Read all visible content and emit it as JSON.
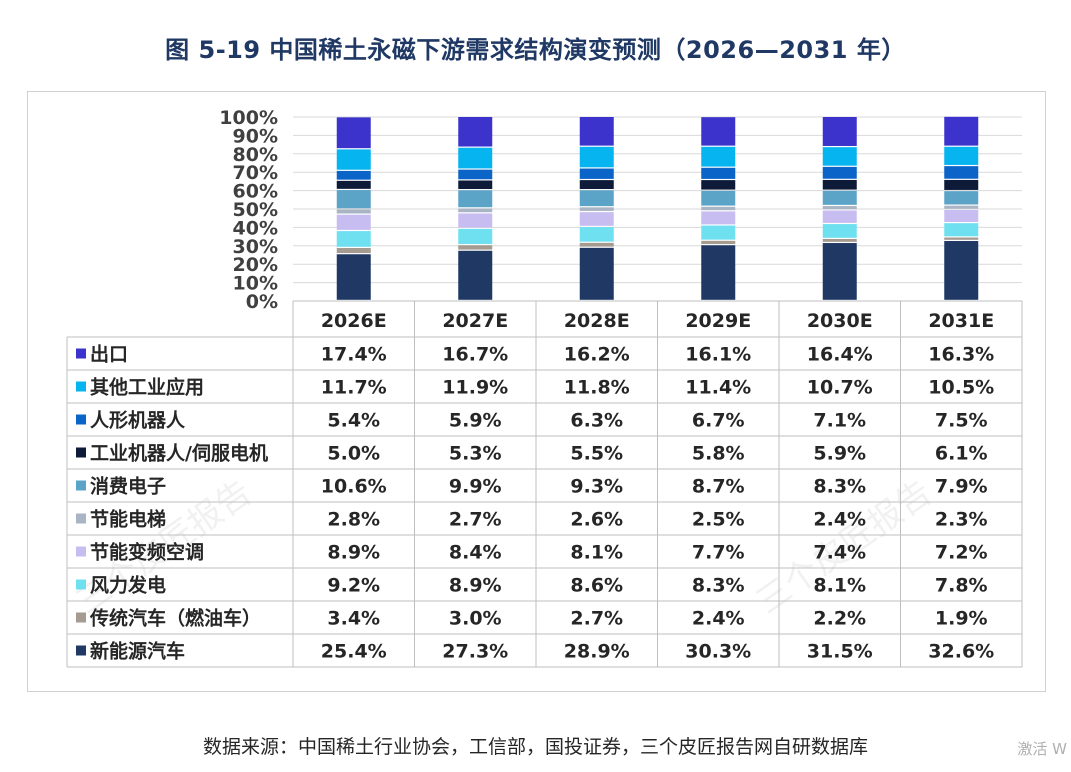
{
  "title": "图 5-19  中国稀土永磁下游需求结构演变预测（2026—2031 年）",
  "source": "数据来源：中国稀土行业协会，工信部，国投证券，三个皮匠报告网自研数据库",
  "watermark_corner": "激活 W",
  "watermark_diag": "三个皮匠报告",
  "chart_data": {
    "type": "bar",
    "stacked": true,
    "normalized": true,
    "categories": [
      "2026E",
      "2027E",
      "2028E",
      "2029E",
      "2030E",
      "2031E"
    ],
    "y_ticks": [
      "0%",
      "10%",
      "20%",
      "30%",
      "40%",
      "50%",
      "60%",
      "70%",
      "80%",
      "90%",
      "100%"
    ],
    "ylim": [
      0,
      100
    ],
    "grid": true,
    "legend": "data-table",
    "series": [
      {
        "name": "新能源汽车",
        "color": "#1f3864",
        "values": [
          25.4,
          27.3,
          28.9,
          30.3,
          31.5,
          32.6
        ],
        "labels": [
          "25.4%",
          "27.3%",
          "28.9%",
          "30.3%",
          "31.5%",
          "32.6%"
        ]
      },
      {
        "name": "传统汽车（燃油车）",
        "color": "#a59b91",
        "values": [
          3.4,
          3.0,
          2.7,
          2.4,
          2.2,
          1.9
        ],
        "labels": [
          "3.4%",
          "3.0%",
          "2.7%",
          "2.4%",
          "2.2%",
          "1.9%"
        ]
      },
      {
        "name": "风力发电",
        "color": "#6fe0ef",
        "values": [
          9.2,
          8.9,
          8.6,
          8.3,
          8.1,
          7.8
        ],
        "labels": [
          "9.2%",
          "8.9%",
          "8.6%",
          "8.3%",
          "8.1%",
          "7.8%"
        ]
      },
      {
        "name": "节能变频空调",
        "color": "#c8bdf0",
        "values": [
          8.9,
          8.4,
          8.1,
          7.7,
          7.4,
          7.2
        ],
        "labels": [
          "8.9%",
          "8.4%",
          "8.1%",
          "7.7%",
          "7.4%",
          "7.2%"
        ]
      },
      {
        "name": "节能电梯",
        "color": "#a9b4c4",
        "values": [
          2.8,
          2.7,
          2.6,
          2.5,
          2.4,
          2.3
        ],
        "labels": [
          "2.8%",
          "2.7%",
          "2.6%",
          "2.5%",
          "2.4%",
          "2.3%"
        ]
      },
      {
        "name": "消费电子",
        "color": "#5ba4c8",
        "values": [
          10.6,
          9.9,
          9.3,
          8.7,
          8.3,
          7.9
        ],
        "labels": [
          "10.6%",
          "9.9%",
          "9.3%",
          "8.7%",
          "8.3%",
          "7.9%"
        ]
      },
      {
        "name": "工业机器人/伺服电机",
        "color": "#0d1a38",
        "values": [
          5.0,
          5.3,
          5.5,
          5.8,
          5.9,
          6.1
        ],
        "labels": [
          "5.0%",
          "5.3%",
          "5.5%",
          "5.8%",
          "5.9%",
          "6.1%"
        ]
      },
      {
        "name": "人形机器人",
        "color": "#0b64c8",
        "values": [
          5.4,
          5.9,
          6.3,
          6.7,
          7.1,
          7.5
        ],
        "labels": [
          "5.4%",
          "5.9%",
          "6.3%",
          "6.7%",
          "7.1%",
          "7.5%"
        ]
      },
      {
        "name": "其他工业应用",
        "color": "#06b4f0",
        "values": [
          11.7,
          11.9,
          11.8,
          11.4,
          10.7,
          10.5
        ],
        "labels": [
          "11.7%",
          "11.9%",
          "11.8%",
          "11.4%",
          "10.7%",
          "10.5%"
        ]
      },
      {
        "name": "出口",
        "color": "#3c33cc",
        "values": [
          17.4,
          16.7,
          16.2,
          16.1,
          16.4,
          16.3
        ],
        "labels": [
          "17.4%",
          "16.7%",
          "16.2%",
          "16.1%",
          "16.4%",
          "16.3%"
        ]
      }
    ]
  }
}
